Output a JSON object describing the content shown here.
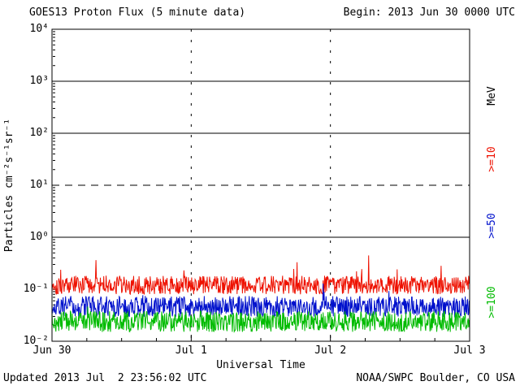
{
  "header": {
    "begin": "Begin: 2013 Jun 30 0000 UTC"
  },
  "footer": {
    "updated": "Updated 2013 Jul  2 23:56:02 UTC",
    "source": "NOAA/SWPC Boulder, CO USA"
  },
  "chart_data": {
    "type": "line",
    "title": "GOES13 Proton Flux (5 minute data)",
    "xlabel": "Universal Time",
    "ylabel": "Particles cm⁻²s⁻¹sr⁻¹",
    "x_tick_labels": [
      "Jun 30",
      "Jul 1",
      "Jul 2",
      "Jul 3"
    ],
    "y_tick_labels": [
      "10⁴",
      "10³",
      "10²",
      "10¹",
      "10⁰",
      "10⁻¹",
      "10⁻²"
    ],
    "y_log_range": [
      -2,
      4
    ],
    "x_range_days": 3,
    "sample_interval_minutes": 5,
    "grid": "horizontal-thresholds",
    "hlines_log": [
      {
        "log": 0,
        "style": "solid"
      },
      {
        "log": 1,
        "style": "dashed"
      },
      {
        "log": 2,
        "style": "solid"
      },
      {
        "log": 3,
        "style": "solid"
      }
    ],
    "vlines_days": [
      1,
      2
    ],
    "series": [
      {
        "name": ">=10 MeV",
        "color": "#ee1100",
        "baseline_log": -0.92,
        "noise_log": 0.18,
        "spike_prob": 0.02,
        "spike_log": 0.45,
        "approx_flux_range": [
          0.07,
          0.5
        ],
        "seed": 101
      },
      {
        "name": ">=50 MeV",
        "color": "#0011cc",
        "baseline_log": -1.33,
        "noise_log": 0.2,
        "spike_prob": 0.015,
        "spike_log": 0.3,
        "approx_flux_range": [
          0.02,
          0.1
        ],
        "seed": 202
      },
      {
        "name": ">=100 MeV",
        "color": "#00bb00",
        "baseline_log": -1.62,
        "noise_log": 0.2,
        "spike_prob": 0.01,
        "spike_log": 0.22,
        "approx_flux_range": [
          0.012,
          0.05
        ],
        "seed": 303
      }
    ],
    "right_axis_labels": [
      {
        "text": "MeV",
        "color": "#000000"
      },
      {
        "text": ">=10",
        "color": "#ee1100"
      },
      {
        "text": ">=50",
        "color": "#0011cc"
      },
      {
        "text": ">=100",
        "color": "#00bb00"
      }
    ],
    "legend_position": "right-rotated",
    "background": "#ffffff"
  }
}
